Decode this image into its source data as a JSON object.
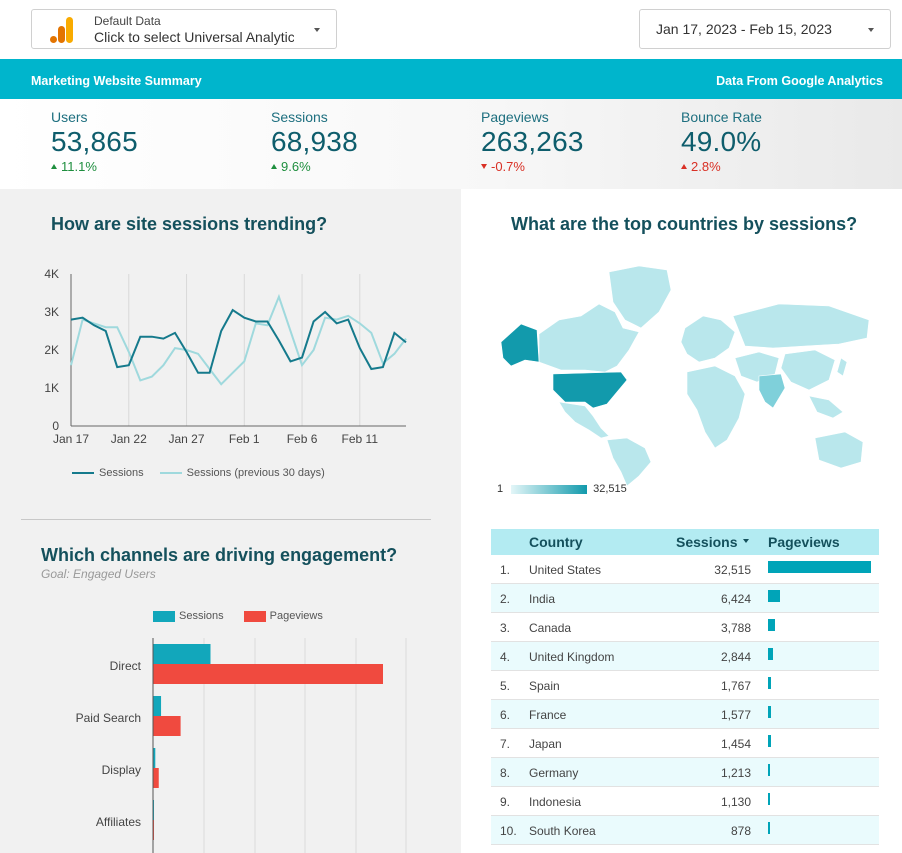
{
  "datasource": {
    "caption": "Default Data",
    "value": "Click to select Universal Analytics"
  },
  "date_range": "Jan 17, 2023 - Feb 15, 2023",
  "header": {
    "title": "Marketing Website Summary",
    "source": "Data From Google Analytics"
  },
  "colors": {
    "accent": "#00b5cc",
    "series_current": "#157a8c",
    "series_previous": "#9fd9dd",
    "sessions_bar": "#12a7bb",
    "pageviews_bar": "#f04a3f",
    "up_good": "#1e8e3e",
    "down_bad": "#d93025"
  },
  "kpis": [
    {
      "label": "Users",
      "value": "53,865",
      "delta": "11.1%",
      "direction": "up",
      "tone": "good"
    },
    {
      "label": "Sessions",
      "value": "68,938",
      "delta": "9.6%",
      "direction": "up",
      "tone": "good"
    },
    {
      "label": "Pageviews",
      "value": "263,263",
      "delta": "-0.7%",
      "direction": "down",
      "tone": "bad"
    },
    {
      "label": "Bounce Rate",
      "value": "49.0%",
      "delta": "2.8%",
      "direction": "up",
      "tone": "bad"
    }
  ],
  "sessions_trend": {
    "title": "How are site sessions trending?"
  },
  "countries_map": {
    "title": "What are the top countries by sessions?",
    "scale_min": "1",
    "scale_max": "32,515"
  },
  "channels": {
    "title": "Which channels are driving engagement?",
    "subtitle": "Goal: Engaged Users"
  },
  "country_table": {
    "headers": {
      "country": "Country",
      "sessions": "Sessions",
      "pageviews": "Pageviews"
    },
    "rows": [
      {
        "rank": "1.",
        "country": "United States",
        "sessions": "32,515",
        "pageviews_share": 1.0
      },
      {
        "rank": "2.",
        "country": "India",
        "sessions": "6,424",
        "pageviews_share": 0.115
      },
      {
        "rank": "3.",
        "country": "Canada",
        "sessions": "3,788",
        "pageviews_share": 0.065
      },
      {
        "rank": "4.",
        "country": "United Kingdom",
        "sessions": "2,844",
        "pageviews_share": 0.05
      },
      {
        "rank": "5.",
        "country": "Spain",
        "sessions": "1,767",
        "pageviews_share": 0.03
      },
      {
        "rank": "6.",
        "country": "France",
        "sessions": "1,577",
        "pageviews_share": 0.03
      },
      {
        "rank": "7.",
        "country": "Japan",
        "sessions": "1,454",
        "pageviews_share": 0.028
      },
      {
        "rank": "8.",
        "country": "Germany",
        "sessions": "1,213",
        "pageviews_share": 0.022
      },
      {
        "rank": "9.",
        "country": "Indonesia",
        "sessions": "1,130",
        "pageviews_share": 0.02
      },
      {
        "rank": "10.",
        "country": "South Korea",
        "sessions": "878",
        "pageviews_share": 0.015
      }
    ]
  },
  "chart_data": [
    {
      "type": "line",
      "title": "How are site sessions trending?",
      "x": [
        "Jan 17",
        "Jan 18",
        "Jan 19",
        "Jan 20",
        "Jan 21",
        "Jan 22",
        "Jan 23",
        "Jan 24",
        "Jan 25",
        "Jan 26",
        "Jan 27",
        "Jan 28",
        "Jan 29",
        "Jan 30",
        "Jan 31",
        "Feb 1",
        "Feb 2",
        "Feb 3",
        "Feb 4",
        "Feb 5",
        "Feb 6",
        "Feb 7",
        "Feb 8",
        "Feb 9",
        "Feb 10",
        "Feb 11",
        "Feb 12",
        "Feb 13",
        "Feb 14",
        "Feb 15"
      ],
      "x_tick_labels": [
        "Jan 17",
        "Jan 22",
        "Jan 27",
        "Feb 1",
        "Feb 6",
        "Feb 11"
      ],
      "y_ticks": [
        "0",
        "1K",
        "2K",
        "3K",
        "4K"
      ],
      "ylim": [
        0,
        4000
      ],
      "grid": "vertical",
      "legend_position": "bottom",
      "series": [
        {
          "name": "Sessions",
          "values": [
            2800,
            2850,
            2650,
            2500,
            1550,
            1600,
            2350,
            2350,
            2300,
            2450,
            1950,
            1400,
            1400,
            2500,
            3050,
            2850,
            2750,
            2750,
            2250,
            1700,
            1800,
            2750,
            3000,
            2700,
            2800,
            2050,
            1500,
            1550,
            2450,
            2200
          ]
        },
        {
          "name": "Sessions (previous 30 days)",
          "values": [
            1600,
            2800,
            2700,
            2600,
            2600,
            1950,
            1200,
            1300,
            1600,
            2050,
            2000,
            1900,
            1500,
            1100,
            1400,
            1700,
            2700,
            2650,
            3400,
            2500,
            1600,
            2000,
            2850,
            2800,
            2900,
            2700,
            2450,
            1650,
            1900,
            2300
          ]
        }
      ]
    },
    {
      "type": "bar",
      "orientation": "horizontal",
      "title": "Which channels are driving engagement?",
      "categories": [
        "Direct",
        "Paid Search",
        "Display",
        "Affiliates"
      ],
      "legend_position": "top",
      "series": [
        {
          "name": "Sessions",
          "values": [
            0.25,
            0.035,
            0.01,
            0.003
          ]
        },
        {
          "name": "Pageviews",
          "values": [
            1.0,
            0.12,
            0.025,
            0.004
          ]
        }
      ]
    }
  ]
}
